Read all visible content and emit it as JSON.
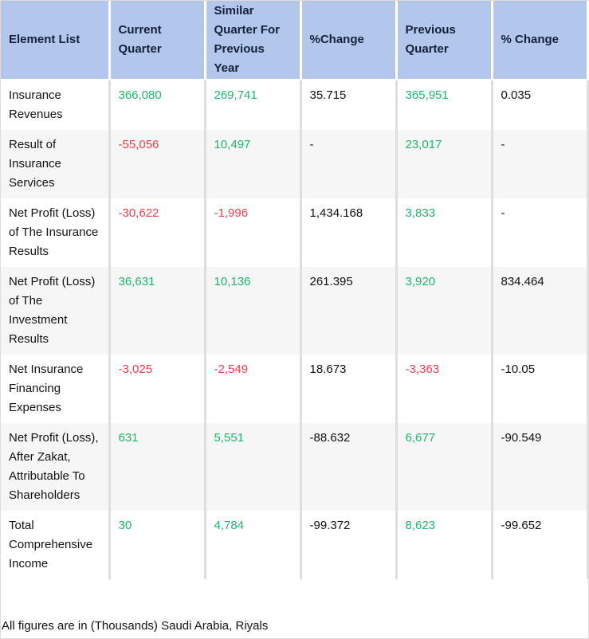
{
  "headers": [
    "Element List",
    "Current Quarter",
    "Similar Quarter For Previous Year",
    "%Change",
    "Previous Quarter",
    "% Change"
  ],
  "rows": [
    {
      "label": "Insurance Revenues",
      "current": "366,080",
      "similar": "269,741",
      "change": "35.715",
      "previous": "365,951",
      "change2": "0.035"
    },
    {
      "label": "Result of Insurance Services",
      "current": "-55,056",
      "similar": "10,497",
      "change": "-",
      "previous": "23,017",
      "change2": "-"
    },
    {
      "label": "Net Profit (Loss) of The Insurance Results",
      "current": "-30,622",
      "similar": "-1,996",
      "change": "1,434.168",
      "previous": "3,833",
      "change2": "-"
    },
    {
      "label": "Net Profit (Loss) of The Investment Results",
      "current": "36,631",
      "similar": "10,136",
      "change": "261.395",
      "previous": "3,920",
      "change2": "834.464"
    },
    {
      "label": "Net Insurance Financing Expenses",
      "current": "-3,025",
      "similar": "-2,549",
      "change": "18.673",
      "previous": "-3,363",
      "change2": "-10.05"
    },
    {
      "label": "Net Profit (Loss), After Zakat, Attributable To Shareholders",
      "current": "631",
      "similar": "5,551",
      "change": "-88.632",
      "previous": "6,677",
      "change2": "-90.549"
    },
    {
      "label": "Total Comprehensive Income",
      "current": "30",
      "similar": "4,784",
      "change": "-99.372",
      "previous": "8,623",
      "change2": "-99.652"
    }
  ],
  "footnote": "All figures are in (Thousands) Saudi Arabia, Riyals",
  "colors": {
    "header_bg": "#b3c6ec",
    "positive": "#1bb86a",
    "negative": "#f23d4c"
  }
}
